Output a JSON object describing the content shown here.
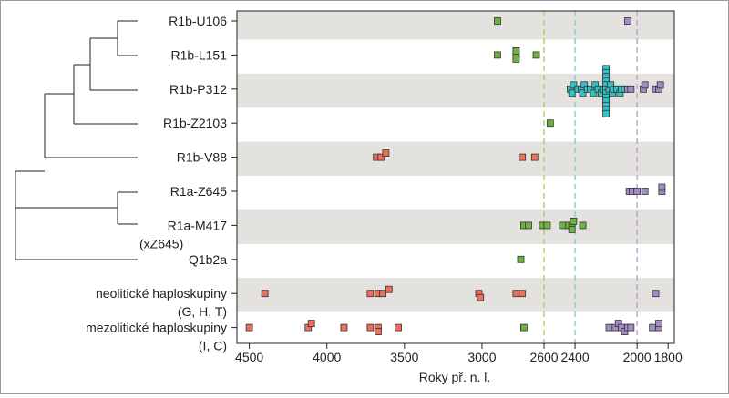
{
  "chart_data": {
    "type": "scatter",
    "title": "",
    "xlabel": "Roky př. n. l.",
    "ylabel": "",
    "x_axis": {
      "reversed": true,
      "xlim": [
        4580,
        1760
      ],
      "ticks": [
        4500,
        4000,
        3500,
        3000,
        2600,
        2400,
        2000,
        1800
      ]
    },
    "categories": [
      [
        "R1b-U106"
      ],
      [
        "R1b-L151"
      ],
      [
        "R1b-P312"
      ],
      [
        "R1b-Z2103"
      ],
      [
        "R1b-V88"
      ],
      [
        "R1a-Z645"
      ],
      [
        "R1a-M417",
        "(xZ645)"
      ],
      [
        "Q1b2a"
      ],
      [
        "neolitické haploskupiny",
        "(G, H, T)"
      ],
      [
        "mezolitické haploskupiny",
        "(I, C)"
      ]
    ],
    "shaded_rows": [
      0,
      2,
      4,
      6,
      8
    ],
    "reference_lines": [
      {
        "x": 2600,
        "color": "#b7c97a"
      },
      {
        "x": 2400,
        "color": "#8ed0c6"
      },
      {
        "x": 2000,
        "color": "#b9a7d6"
      }
    ],
    "colors": {
      "red": "#e8705d",
      "green": "#6cb33f",
      "teal": "#35c2c6",
      "purple": "#a58bc4"
    },
    "series": [
      {
        "row": 0,
        "color": "green",
        "points": [
          [
            2900,
            0
          ]
        ]
      },
      {
        "row": 0,
        "color": "purple",
        "points": [
          [
            2060,
            0
          ]
        ]
      },
      {
        "row": 1,
        "color": "green",
        "points": [
          [
            2900,
            0
          ],
          [
            2780,
            0
          ],
          [
            2780,
            -1
          ],
          [
            2780,
            1
          ],
          [
            2650,
            0
          ]
        ]
      },
      {
        "row": 2,
        "color": "teal",
        "points": [
          [
            2430,
            0
          ],
          [
            2420,
            1
          ],
          [
            2410,
            -1
          ],
          [
            2380,
            0
          ],
          [
            2360,
            0
          ],
          [
            2350,
            1
          ],
          [
            2340,
            -1
          ],
          [
            2320,
            0
          ],
          [
            2300,
            0
          ],
          [
            2280,
            1
          ],
          [
            2270,
            -1
          ],
          [
            2250,
            0
          ],
          [
            2230,
            1
          ],
          [
            2220,
            0
          ],
          [
            2200,
            -5
          ],
          [
            2200,
            -4
          ],
          [
            2200,
            -3
          ],
          [
            2200,
            -2
          ],
          [
            2200,
            -1
          ],
          [
            2200,
            0
          ],
          [
            2200,
            1
          ],
          [
            2200,
            2
          ],
          [
            2200,
            3
          ],
          [
            2200,
            4
          ],
          [
            2200,
            5
          ],
          [
            2200,
            6
          ],
          [
            2180,
            0
          ],
          [
            2170,
            -1
          ],
          [
            2160,
            1
          ],
          [
            2150,
            0
          ],
          [
            2130,
            0
          ],
          [
            2110,
            1
          ],
          [
            2100,
            0
          ],
          [
            2080,
            0
          ]
        ]
      },
      {
        "row": 2,
        "color": "purple",
        "points": [
          [
            2060,
            0
          ],
          [
            2040,
            0
          ],
          [
            1960,
            0
          ],
          [
            1950,
            -1
          ],
          [
            1880,
            0
          ],
          [
            1860,
            0
          ],
          [
            1850,
            -1
          ]
        ]
      },
      {
        "row": 3,
        "color": "green",
        "points": [
          [
            2560,
            0
          ]
        ]
      },
      {
        "row": 4,
        "color": "red",
        "points": [
          [
            3680,
            0
          ],
          [
            3650,
            0
          ],
          [
            3620,
            -1
          ],
          [
            2740,
            0
          ],
          [
            2660,
            0
          ]
        ]
      },
      {
        "row": 5,
        "color": "purple",
        "points": [
          [
            2050,
            0
          ],
          [
            2030,
            0
          ],
          [
            2000,
            0
          ],
          [
            1950,
            0
          ],
          [
            1840,
            0
          ],
          [
            1840,
            -1
          ]
        ]
      },
      {
        "row": 6,
        "color": "green",
        "points": [
          [
            2730,
            0
          ],
          [
            2700,
            0
          ],
          [
            2610,
            0
          ],
          [
            2580,
            0
          ],
          [
            2480,
            0
          ],
          [
            2440,
            0
          ],
          [
            2420,
            0
          ],
          [
            2420,
            1
          ],
          [
            2410,
            -1
          ],
          [
            2350,
            0
          ]
        ]
      },
      {
        "row": 7,
        "color": "green",
        "points": [
          [
            2750,
            0
          ]
        ]
      },
      {
        "row": 8,
        "color": "red",
        "points": [
          [
            4400,
            0
          ],
          [
            3720,
            0
          ],
          [
            3670,
            0
          ],
          [
            3640,
            0
          ],
          [
            3600,
            -1
          ],
          [
            3020,
            0
          ],
          [
            3010,
            1
          ],
          [
            2780,
            0
          ],
          [
            2740,
            0
          ]
        ]
      },
      {
        "row": 8,
        "color": "purple",
        "points": [
          [
            1880,
            0
          ]
        ]
      },
      {
        "row": 9,
        "color": "red",
        "points": [
          [
            4500,
            0
          ],
          [
            4120,
            0
          ],
          [
            4100,
            -1
          ],
          [
            3890,
            0
          ],
          [
            3720,
            0
          ],
          [
            3670,
            0
          ],
          [
            3670,
            1
          ],
          [
            3540,
            0
          ]
        ]
      },
      {
        "row": 9,
        "color": "green",
        "points": [
          [
            2730,
            0
          ]
        ]
      },
      {
        "row": 9,
        "color": "purple",
        "points": [
          [
            2180,
            0
          ],
          [
            2140,
            0
          ],
          [
            2120,
            -1
          ],
          [
            2100,
            0
          ],
          [
            2080,
            1
          ],
          [
            2060,
            0
          ],
          [
            2040,
            0
          ],
          [
            1900,
            0
          ],
          [
            1860,
            0
          ],
          [
            1860,
            -1
          ]
        ]
      }
    ]
  }
}
